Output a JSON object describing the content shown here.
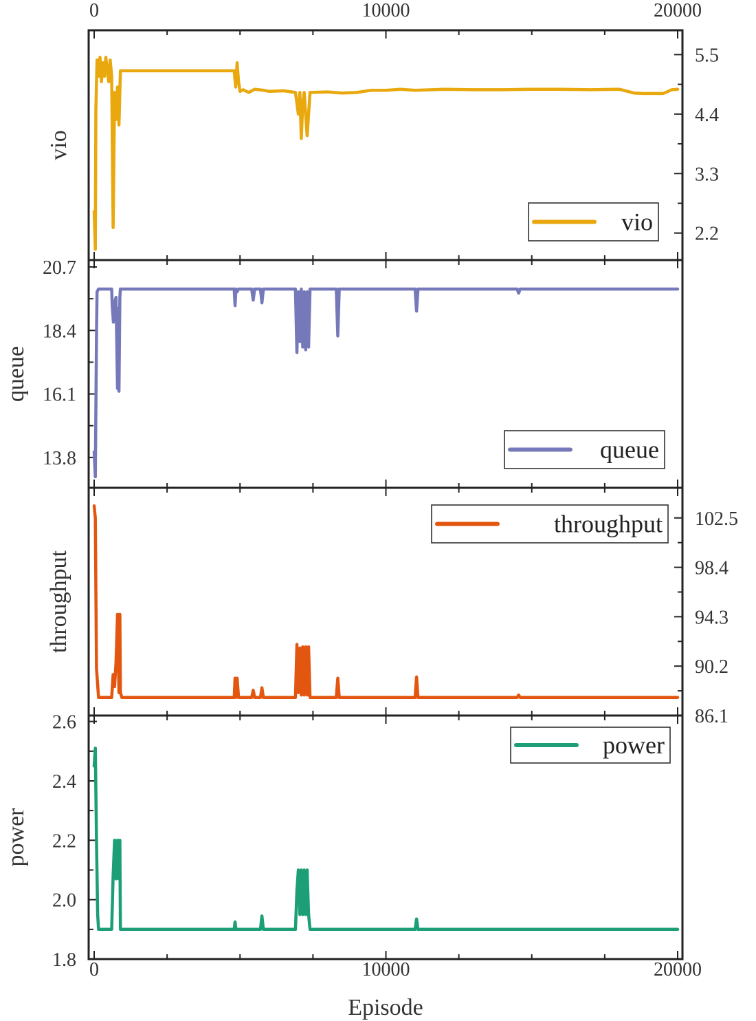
{
  "chart_data": {
    "type": "line",
    "xlabel": "Episode",
    "xlim": [
      0,
      20000
    ],
    "xticks": [
      0,
      10000,
      20000
    ],
    "x_tick_labels": [
      "0",
      "10000",
      "20000"
    ],
    "panels": [
      {
        "name": "vio",
        "ylabel": "vio",
        "legend": "vio",
        "color": "#E8A80E",
        "ylim": [
          1.7,
          5.95
        ],
        "y_axis_side": "right",
        "yticks": [
          2.2,
          3.3,
          4.4,
          5.5
        ],
        "y_tick_labels": [
          "2.2",
          "3.3",
          "4.4",
          "5.5"
        ],
        "series": {
          "x": [
            0,
            40,
            60,
            100,
            150,
            200,
            250,
            300,
            350,
            400,
            450,
            500,
            550,
            600,
            650,
            700,
            750,
            800,
            850,
            900,
            950,
            1000,
            1500,
            2000,
            3000,
            4000,
            4800,
            4850,
            4900,
            4950,
            5000,
            5100,
            5300,
            5500,
            5800,
            6000,
            6500,
            6900,
            7000,
            7050,
            7100,
            7150,
            7200,
            7300,
            7400,
            8000,
            8500,
            9000,
            9500,
            10000,
            10500,
            11000,
            12000,
            13000,
            14000,
            15000,
            16000,
            17000,
            18000,
            18500,
            18800,
            19500,
            19800,
            20000
          ],
          "y": [
            2.6,
            1.9,
            4.5,
            5.4,
            5.1,
            5.45,
            5.0,
            5.35,
            5.1,
            5.45,
            5.2,
            5.0,
            5.4,
            5.1,
            2.3,
            4.8,
            4.3,
            4.9,
            4.2,
            5.2,
            5.2,
            5.2,
            5.2,
            5.2,
            5.2,
            5.2,
            5.2,
            4.9,
            5.35,
            5.0,
            4.82,
            4.85,
            4.8,
            4.86,
            4.84,
            4.82,
            4.83,
            4.8,
            4.4,
            4.8,
            3.95,
            4.6,
            4.8,
            4.0,
            4.8,
            4.81,
            4.79,
            4.8,
            4.84,
            4.84,
            4.86,
            4.84,
            4.86,
            4.85,
            4.85,
            4.86,
            4.86,
            4.85,
            4.86,
            4.79,
            4.78,
            4.78,
            4.85,
            4.86
          ]
        }
      },
      {
        "name": "queue",
        "ylabel": "queue",
        "legend": "queue",
        "color": "#7679B9",
        "ylim": [
          12.7,
          20.95
        ],
        "y_axis_side": "left",
        "yticks": [
          13.8,
          16.1,
          18.4,
          20.7
        ],
        "y_tick_labels": [
          "13.8",
          "16.1",
          "18.4",
          "20.7"
        ],
        "series": {
          "x": [
            0,
            40,
            80,
            100,
            150,
            200,
            600,
            620,
            660,
            700,
            750,
            800,
            820,
            850,
            880,
            900,
            950,
            1000,
            4800,
            4830,
            4860,
            4900,
            4950,
            5400,
            5450,
            5500,
            5700,
            5750,
            5800,
            6500,
            6900,
            6950,
            7000,
            7050,
            7100,
            7150,
            7200,
            7250,
            7300,
            7350,
            7400,
            8000,
            8300,
            8350,
            8400,
            9000,
            10000,
            11000,
            11050,
            11100,
            12000,
            14000,
            14500,
            14550,
            14600,
            16000,
            18000,
            20000
          ],
          "y": [
            14.0,
            13.1,
            18.2,
            19.8,
            19.9,
            19.9,
            19.9,
            19.3,
            18.7,
            19.4,
            19.6,
            16.3,
            19.2,
            16.2,
            19.6,
            19.9,
            19.9,
            19.9,
            19.9,
            19.3,
            19.9,
            19.8,
            19.9,
            19.9,
            19.5,
            19.9,
            19.9,
            19.4,
            19.9,
            19.9,
            19.9,
            17.6,
            19.8,
            18.0,
            19.9,
            17.8,
            19.8,
            17.7,
            19.8,
            17.8,
            19.9,
            19.9,
            19.9,
            18.2,
            19.9,
            19.9,
            19.9,
            19.9,
            19.1,
            19.9,
            19.9,
            19.9,
            19.9,
            19.75,
            19.9,
            19.9,
            19.9,
            19.9
          ]
        }
      },
      {
        "name": "throughput",
        "ylabel": "throughput",
        "legend": "throughput",
        "color": "#E3560F",
        "ylim": [
          86.1,
          105.0
        ],
        "y_axis_side": "right",
        "yticks": [
          86.1,
          90.2,
          94.3,
          98.4,
          102.5
        ],
        "y_tick_labels": [
          "86.1",
          "90.2",
          "94.3",
          "98.4",
          "102.5"
        ],
        "series": {
          "x": [
            0,
            40,
            80,
            150,
            200,
            600,
            650,
            700,
            750,
            800,
            850,
            880,
            900,
            950,
            1000,
            4800,
            4830,
            4860,
            4900,
            4950,
            5400,
            5450,
            5500,
            5700,
            5750,
            5800,
            6900,
            6950,
            7000,
            7050,
            7100,
            7150,
            7200,
            7250,
            7300,
            7350,
            7400,
            8300,
            8350,
            8400,
            11000,
            11050,
            11100,
            14500,
            14550,
            14600,
            20000
          ],
          "y": [
            103.5,
            102.5,
            90.0,
            87.6,
            87.6,
            87.6,
            89.5,
            88.5,
            90.5,
            94.5,
            88.0,
            94.5,
            88.0,
            87.6,
            87.6,
            87.6,
            89.2,
            87.6,
            89.2,
            87.6,
            87.6,
            88.2,
            87.6,
            87.6,
            88.4,
            87.6,
            87.6,
            92.0,
            88.0,
            91.7,
            87.8,
            91.8,
            87.8,
            91.8,
            87.8,
            91.8,
            87.6,
            87.6,
            89.2,
            87.6,
            87.6,
            89.3,
            87.6,
            87.6,
            87.8,
            87.6,
            87.6
          ]
        }
      },
      {
        "name": "power",
        "ylabel": "power",
        "legend": "power",
        "color": "#1C9E77",
        "ylim": [
          1.8,
          2.62
        ],
        "y_axis_side": "left",
        "yticks": [
          1.8,
          2.0,
          2.2,
          2.4,
          2.6
        ],
        "y_tick_labels": [
          "1.8",
          "2.0",
          "2.2",
          "2.4",
          "2.6"
        ],
        "series": {
          "x": [
            0,
            40,
            80,
            120,
            150,
            200,
            600,
            650,
            700,
            750,
            800,
            850,
            880,
            900,
            950,
            1000,
            4800,
            4830,
            4860,
            5700,
            5750,
            5800,
            6900,
            6950,
            7000,
            7050,
            7100,
            7150,
            7200,
            7250,
            7300,
            7350,
            7400,
            11000,
            11050,
            11100,
            20000
          ],
          "y": [
            2.45,
            2.51,
            2.2,
            1.95,
            1.9,
            1.9,
            1.9,
            2.08,
            2.2,
            2.07,
            2.2,
            2.07,
            2.2,
            1.9,
            1.9,
            1.9,
            1.9,
            1.925,
            1.9,
            1.9,
            1.945,
            1.9,
            1.9,
            2.03,
            2.1,
            1.95,
            2.1,
            1.95,
            2.1,
            1.95,
            2.1,
            1.95,
            1.9,
            1.9,
            1.935,
            1.9,
            1.9
          ]
        }
      }
    ]
  }
}
